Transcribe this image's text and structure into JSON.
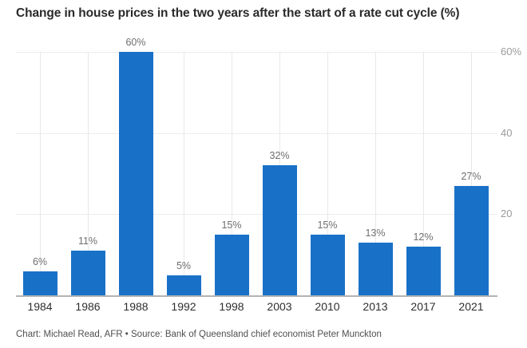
{
  "chart_data": {
    "type": "bar",
    "title": "Change in house prices in the two years after the start of a rate cut cycle (%)",
    "source_note": "Chart: Michael Read, AFR • Source: Bank of Queensland chief economist Peter Munckton",
    "categories": [
      "1984",
      "1986",
      "1988",
      "1992",
      "1998",
      "2003",
      "2010",
      "2013",
      "2017",
      "2021"
    ],
    "values": [
      6,
      11,
      60,
      5,
      15,
      32,
      15,
      13,
      12,
      27
    ],
    "value_labels": [
      "6%",
      "11%",
      "60%",
      "5%",
      "15%",
      "32%",
      "15%",
      "13%",
      "12%",
      "27%"
    ],
    "xlabel": "",
    "ylabel": "",
    "ylim": [
      0,
      60
    ],
    "yticks": [
      {
        "value": 60,
        "label": "60%"
      },
      {
        "value": 40,
        "label": "40"
      },
      {
        "value": 20,
        "label": "20"
      }
    ],
    "grid": "on",
    "legend": "none",
    "ytick_side": "right"
  },
  "colors": {
    "bar": "#1971c7",
    "title_text": "#2a2a2a",
    "xtick_text": "#2e2e2e",
    "value_label_text": "#6f6f6f",
    "ytick_text": "#9b9b9b",
    "gridline": "#ececec",
    "axis_line": "#b3b3b3",
    "source_text": "#4f4f4f",
    "background": "#ffffff"
  }
}
